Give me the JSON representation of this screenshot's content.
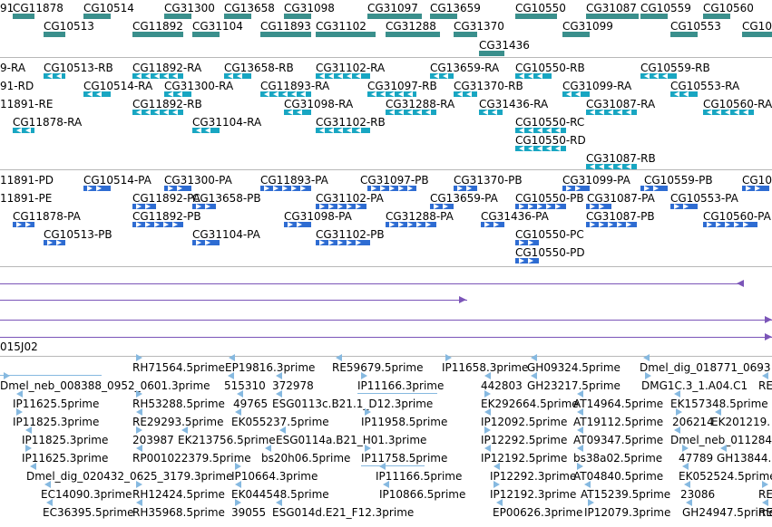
{
  "colors": {
    "gene": "#3a8f8c",
    "mrna": "#18a6c2",
    "protein": "#2e6cd2",
    "ref": "#7b55b8",
    "est": "#86b9e0",
    "divider": "#b8b8b8"
  },
  "tracks": {
    "genes": {
      "labels": [
        "91",
        "CG11878",
        "CG10514",
        "CG31300",
        "CG13658",
        "CG31098",
        "CG31097",
        "CG13659",
        "CG10550",
        "CG31087",
        "CG10559",
        "CG10560",
        "CG10513",
        "CG11892",
        "CG31104",
        "CG11893",
        "CG31102",
        "CG31288",
        "CG31370",
        "CG10553",
        "CG31099",
        "CG10",
        "CG31436"
      ]
    },
    "transcripts": {
      "labels": [
        "9-RA",
        "CG10513-RB",
        "CG11892-RA",
        "CG13658-RB",
        "CG31102-RA",
        "CG13659-RA",
        "CG10550-RB",
        "CG10559-RB",
        "91-RD",
        "CG10514-RA",
        "CG31300-RA",
        "CG11893-RA",
        "CG31097-RB",
        "CG31370-RB",
        "CG31099-RA",
        "CG10553-RA",
        "11891-RE",
        "CG11892-RB",
        "CG31098-RA",
        "CG31288-RA",
        "CG31436-RA",
        "CG31087-RA",
        "CG10560-RA",
        "CG11878-RA",
        "CG31104-RA",
        "CG31102-RB",
        "CG10550-RC",
        "CG10550-RD",
        "CG31087-RB"
      ]
    },
    "proteins": {
      "labels": [
        "11891-PD",
        "CG10514-PA",
        "CG31300-PA",
        "CG11893-PA",
        "CG31097-PB",
        "CG31370-PB",
        "CG31099-PA",
        "CG10559-PB",
        "CG10",
        "11891-PE",
        "CG11892-PA",
        "CG13658-PB",
        "CG31102-PA",
        "CG13659-PA",
        "CG10550-PB",
        "CG31087-PA",
        "CG10553-PA",
        "CG11878-PA",
        "CG11892-PB",
        "CG31098-PA",
        "CG31288-PA",
        "CG31436-PA",
        "CG31087-PB",
        "CG10560-PA",
        "CG10513-PB",
        "CG31104-PA",
        "CG31102-PB",
        "CG10550-PC",
        "CG10550-PD"
      ]
    },
    "clones": {
      "labels": [
        "015J02"
      ]
    },
    "ests": {
      "labels": [
        "RH71564.5prime",
        "EP19816.3prime",
        "RE59679.5prime",
        "IP11658.3prime",
        "GH09324.5prime",
        "Dmel_dig_018771_0693",
        "Dmel_neb_008388_0952_0601.3prime",
        "515310",
        "372978",
        "IP11166.3prime",
        "442803",
        "GH23217.5prime",
        "DMG1C.3_1.A04.C1",
        "RE",
        "IP11625.5prime",
        "RH53288.5prime",
        "49765",
        "ESG0113c.B21.1_D12.3prime",
        "EK292664.5prime",
        "AT14964.5prime",
        "EK157348.5prime",
        "IP11825.3prime",
        "RE29293.5prime",
        "EK055237.5prime",
        "IP11958.5prime",
        "IP12092.5prime",
        "AT19112.5prime",
        "206214",
        "EK201219.",
        "IP11825.3prime",
        "203987",
        "EK213756.5prime",
        "ESG0114a.B21_H01.3prime",
        "IP12292.5prime",
        "AT09347.5prime",
        "Dmel_neb_011284",
        "IP11625.3prime",
        "RP001022379.5prime",
        "bs20h06.5prime",
        "IP11758.5prime",
        "IP12192.5prime",
        "bs38a02.5prime",
        "47789",
        "GH13844.",
        "Dmel_dig_020432_0625_3179.3prime",
        "IP10664.3prime",
        "IP11166.5prime",
        "IP12292.3prime",
        "AT04840.5prime",
        "EK052524.5prime",
        "EC14090.3prime",
        "RH12424.5prime",
        "EK044548.5prime",
        "IP10866.5prime",
        "IP12192.3prime",
        "AT15239.5prime",
        "23086",
        "RE",
        "EC36395.5prime",
        "RH35968.5prime",
        "39055",
        "ESG014d.E21_F12.3prime",
        "EP00626.3prime",
        "IP12079.3prime",
        "GH24947.5prime",
        "RE"
      ]
    }
  }
}
